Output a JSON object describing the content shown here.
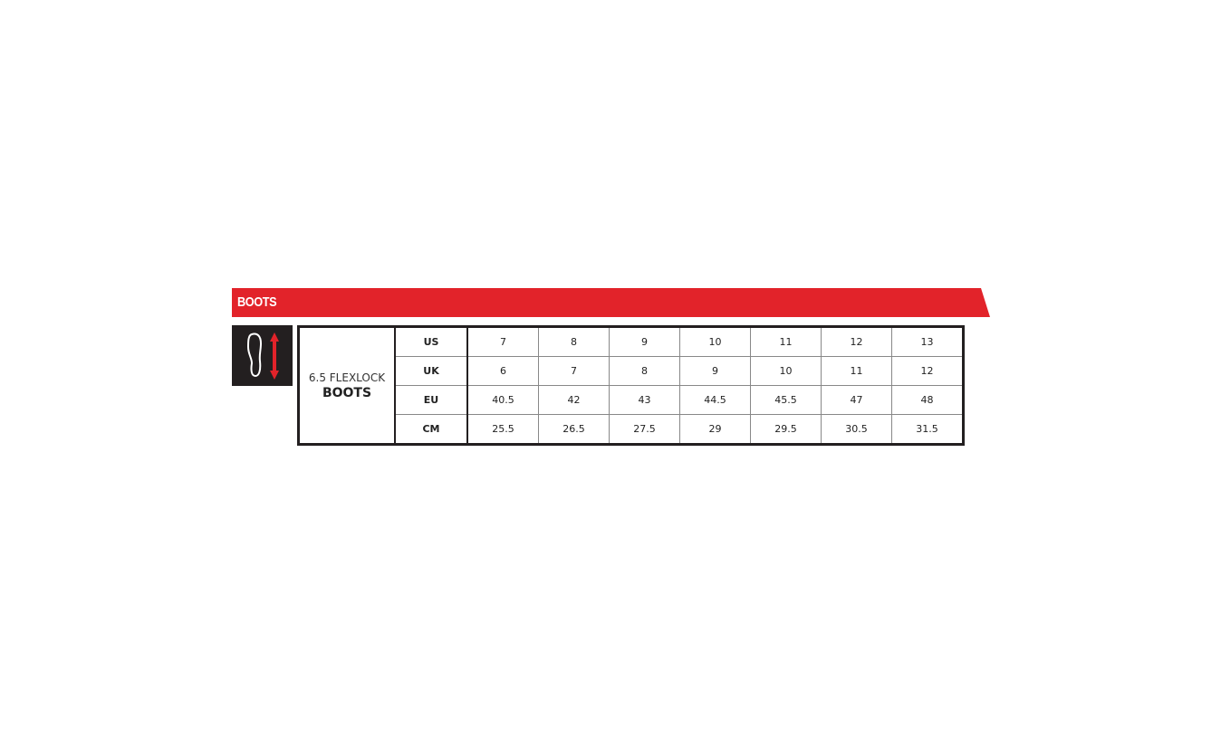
{
  "banner": {
    "title": "BOOTS",
    "color": "#e2232a"
  },
  "icon": {
    "name": "foot-length-icon"
  },
  "product": {
    "line1": "6.5 FLEXLOCK",
    "line2": "BOOTS"
  },
  "rows": [
    {
      "label": "US",
      "values": [
        "7",
        "8",
        "9",
        "10",
        "11",
        "12",
        "13"
      ]
    },
    {
      "label": "UK",
      "values": [
        "6",
        "7",
        "8",
        "9",
        "10",
        "11",
        "12"
      ]
    },
    {
      "label": "EU",
      "values": [
        "40.5",
        "42",
        "43",
        "44.5",
        "45.5",
        "47",
        "48"
      ]
    },
    {
      "label": "CM",
      "values": [
        "25.5",
        "26.5",
        "27.5",
        "29",
        "29.5",
        "30.5",
        "31.5"
      ]
    }
  ]
}
